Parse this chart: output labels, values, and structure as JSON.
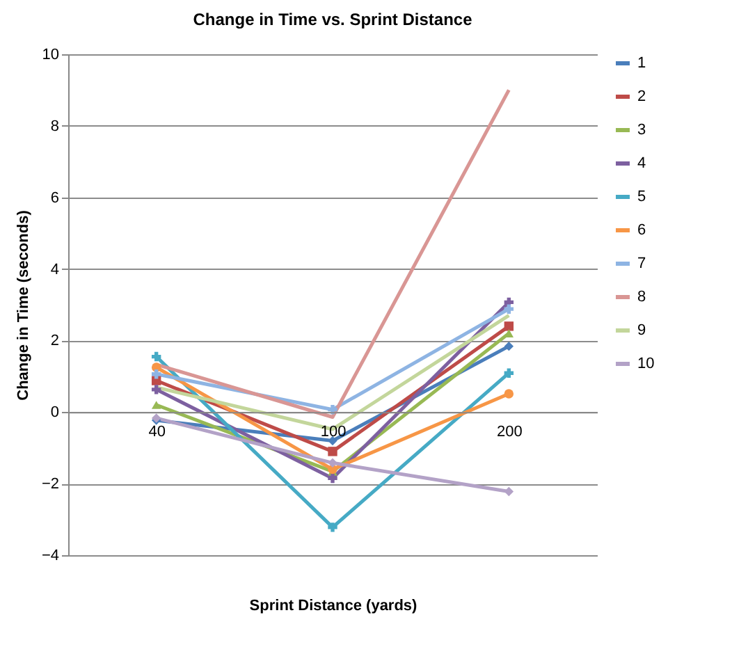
{
  "chart_data": {
    "type": "line",
    "title": "Change in Time vs. Sprint Distance",
    "xlabel": "Sprint Distance (yards)",
    "ylabel": "Change in Time (seconds)",
    "categories": [
      "40",
      "100",
      "200"
    ],
    "ylim": [
      -4,
      10
    ],
    "yticks": [
      -4,
      -2,
      0,
      2,
      4,
      6,
      8,
      10
    ],
    "grid": "y",
    "legend": "right",
    "series": [
      {
        "name": "1",
        "color": "#4a7ebb",
        "marker": "diamond",
        "values": [
          -0.23,
          -0.8,
          1.84
        ]
      },
      {
        "name": "2",
        "color": "#be4b48",
        "marker": "square",
        "values": [
          0.88,
          -1.1,
          2.4
        ]
      },
      {
        "name": "3",
        "color": "#98b954",
        "marker": "triangle",
        "values": [
          0.2,
          -1.66,
          2.2
        ]
      },
      {
        "name": "4",
        "color": "#7d60a0",
        "marker": "cross",
        "values": [
          0.63,
          -1.85,
          3.07
        ]
      },
      {
        "name": "5",
        "color": "#46aac5",
        "marker": "cross",
        "values": [
          1.55,
          -3.22,
          1.09
        ]
      },
      {
        "name": "6",
        "color": "#f79646",
        "marker": "circle",
        "values": [
          1.25,
          -1.6,
          0.51
        ]
      },
      {
        "name": "7",
        "color": "#8eb4e3",
        "marker": "cross",
        "values": [
          1.06,
          0.07,
          2.88
        ]
      },
      {
        "name": "8",
        "color": "#d99694",
        "marker": "none",
        "values": [
          1.33,
          -0.14,
          9.0
        ]
      },
      {
        "name": "9",
        "color": "#c3d69b",
        "marker": "none",
        "values": [
          0.69,
          -0.48,
          2.7
        ]
      },
      {
        "name": "10",
        "color": "#b3a2c7",
        "marker": "diamond",
        "values": [
          -0.17,
          -1.42,
          -2.22
        ]
      }
    ]
  }
}
